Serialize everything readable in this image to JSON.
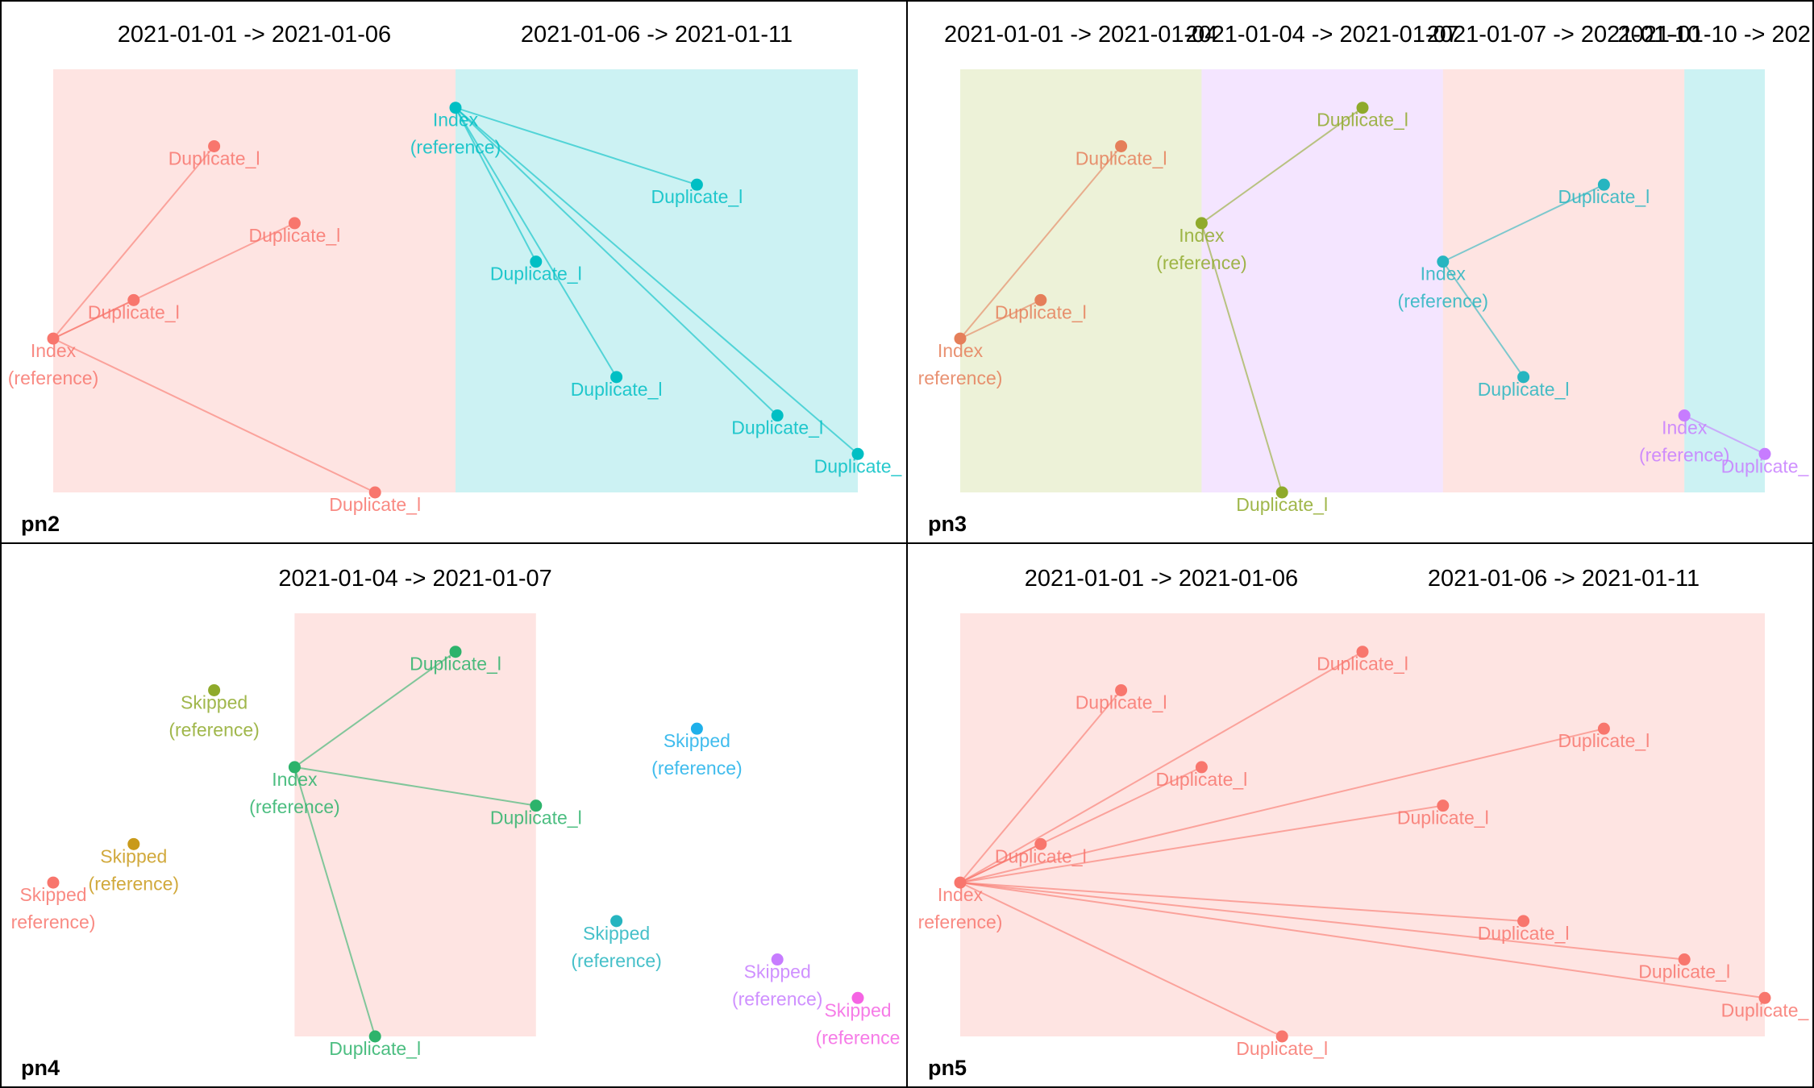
{
  "chart_data": [
    {
      "type": "scatter",
      "panel_label": "pn2",
      "x_range": [
        0,
        10
      ],
      "y_range": [
        0,
        11
      ],
      "periods": [
        {
          "label": "2021-01-01 -> 2021-01-06",
          "x_from": 0,
          "x_to": 5,
          "color": "#F8766D"
        },
        {
          "label": "2021-01-06 -> 2021-01-11",
          "x_from": 5,
          "x_to": 10,
          "color": "#00BFC4"
        }
      ],
      "points": [
        {
          "id": "a0",
          "x": 0,
          "y": 4,
          "label": "Index\n(reference)",
          "color": "#F8766D"
        },
        {
          "id": "a1",
          "x": 2,
          "y": 9,
          "label": "Duplicate_l",
          "color": "#F8766D"
        },
        {
          "id": "a2",
          "x": 3,
          "y": 7,
          "label": "Duplicate_l",
          "color": "#F8766D"
        },
        {
          "id": "a3",
          "x": 1,
          "y": 5,
          "label": "Duplicate_l",
          "color": "#F8766D"
        },
        {
          "id": "a4",
          "x": 4,
          "y": 0,
          "label": "Duplicate_l",
          "color": "#F8766D"
        },
        {
          "id": "b0",
          "x": 5,
          "y": 10,
          "label": "Index\n(reference)",
          "color": "#00BFC4"
        },
        {
          "id": "b1",
          "x": 8,
          "y": 8,
          "label": "Duplicate_l",
          "color": "#00BFC4"
        },
        {
          "id": "b2",
          "x": 6,
          "y": 6,
          "label": "Duplicate_l",
          "color": "#00BFC4"
        },
        {
          "id": "b3",
          "x": 7,
          "y": 3,
          "label": "Duplicate_l",
          "color": "#00BFC4"
        },
        {
          "id": "b4",
          "x": 9,
          "y": 2,
          "label": "Duplicate_l",
          "color": "#00BFC4"
        },
        {
          "id": "b5",
          "x": 10,
          "y": 1,
          "label": "Duplicate_",
          "color": "#00BFC4"
        }
      ],
      "edges": [
        [
          "a0",
          "a1"
        ],
        [
          "a0",
          "a2"
        ],
        [
          "a0",
          "a3"
        ],
        [
          "a0",
          "a4"
        ],
        [
          "b0",
          "b1"
        ],
        [
          "b0",
          "b2"
        ],
        [
          "b0",
          "b3"
        ],
        [
          "b0",
          "b4"
        ],
        [
          "b0",
          "b5"
        ]
      ]
    },
    {
      "type": "scatter",
      "panel_label": "pn3",
      "x_range": [
        0,
        10
      ],
      "y_range": [
        0,
        11
      ],
      "periods": [
        {
          "label": "2021-01-01 -> 2021-01-04",
          "x_from": 0,
          "x_to": 3,
          "color": "#A3C03D"
        },
        {
          "label": "2021-01-04 -> 2021-01-07",
          "x_from": 3,
          "x_to": 6,
          "color": "#C77CFF"
        },
        {
          "label": "2021-01-07 -> 2021-01-10",
          "x_from": 6,
          "x_to": 9,
          "color": "#F8766D"
        },
        {
          "label": "2021-01-10 -> 2021-",
          "x_from": 9,
          "x_to": 10,
          "color": "#00BFC4"
        }
      ],
      "points": [
        {
          "id": "a0",
          "x": 0,
          "y": 4,
          "label": "Index\nreference)",
          "color": "#E57F5A"
        },
        {
          "id": "a1",
          "x": 2,
          "y": 9,
          "label": "Duplicate_l",
          "color": "#E57F5A"
        },
        {
          "id": "a2",
          "x": 1,
          "y": 5,
          "label": "Duplicate_l",
          "color": "#E57F5A"
        },
        {
          "id": "b0",
          "x": 3,
          "y": 7,
          "label": "Index\n(reference)",
          "color": "#8FAA2B"
        },
        {
          "id": "b1",
          "x": 5,
          "y": 10,
          "label": "Duplicate_l",
          "color": "#8FAA2B"
        },
        {
          "id": "b2",
          "x": 4,
          "y": 0,
          "label": "Duplicate_l",
          "color": "#8FAA2B"
        },
        {
          "id": "c0",
          "x": 6,
          "y": 6,
          "label": "Index\n(reference)",
          "color": "#26B5C0"
        },
        {
          "id": "c1",
          "x": 8,
          "y": 8,
          "label": "Duplicate_l",
          "color": "#26B5C0"
        },
        {
          "id": "c2",
          "x": 7,
          "y": 3,
          "label": "Duplicate_l",
          "color": "#26B5C0"
        },
        {
          "id": "d0",
          "x": 9,
          "y": 2,
          "label": "Index\n(reference)",
          "color": "#C77CFF"
        },
        {
          "id": "d1",
          "x": 10,
          "y": 1,
          "label": "Duplicate_",
          "color": "#C77CFF"
        }
      ],
      "edges": [
        [
          "a0",
          "a1"
        ],
        [
          "a0",
          "a2"
        ],
        [
          "b0",
          "b1"
        ],
        [
          "b0",
          "b2"
        ],
        [
          "c0",
          "c1"
        ],
        [
          "c0",
          "c2"
        ],
        [
          "d0",
          "d1"
        ]
      ]
    },
    {
      "type": "scatter",
      "panel_label": "pn4",
      "x_range": [
        0,
        10
      ],
      "y_range": [
        0,
        11
      ],
      "periods": [
        {
          "label": "2021-01-04 -> 2021-01-07",
          "x_from": 3,
          "x_to": 6,
          "color": "#F8766D"
        }
      ],
      "points": [
        {
          "id": "a0",
          "x": 3,
          "y": 7,
          "label": "Index\n(reference)",
          "color": "#2DB36B"
        },
        {
          "id": "a1",
          "x": 5,
          "y": 10,
          "label": "Duplicate_l",
          "color": "#2DB36B"
        },
        {
          "id": "a2",
          "x": 6,
          "y": 6,
          "label": "Duplicate_l",
          "color": "#2DB36B"
        },
        {
          "id": "a3",
          "x": 4,
          "y": 0,
          "label": "Duplicate_l",
          "color": "#2DB36B"
        },
        {
          "id": "s1",
          "x": 2,
          "y": 9,
          "label": "Skipped\n(reference)",
          "color": "#8FAA2B"
        },
        {
          "id": "s2",
          "x": 1,
          "y": 5,
          "label": "Skipped\n(reference)",
          "color": "#C99A1A"
        },
        {
          "id": "s3",
          "x": 0,
          "y": 4,
          "label": "Skipped\nreference)",
          "color": "#F8766D"
        },
        {
          "id": "s4",
          "x": 8,
          "y": 8,
          "label": "Skipped\n(reference)",
          "color": "#1FB0EA"
        },
        {
          "id": "s5",
          "x": 7,
          "y": 3,
          "label": "Skipped\n(reference)",
          "color": "#26B5C0"
        },
        {
          "id": "s6",
          "x": 9,
          "y": 2,
          "label": "Skipped\n(reference)",
          "color": "#C77CFF"
        },
        {
          "id": "s7",
          "x": 10,
          "y": 1,
          "label": "Skipped\n(reference",
          "color": "#F564E3"
        }
      ],
      "edges": [
        [
          "a0",
          "a1"
        ],
        [
          "a0",
          "a2"
        ],
        [
          "a0",
          "a3"
        ]
      ]
    },
    {
      "type": "scatter",
      "panel_label": "pn5",
      "x_range": [
        0,
        10
      ],
      "y_range": [
        0,
        11
      ],
      "periods": [
        {
          "label": "2021-01-01 -> 2021-01-06",
          "x_from": 0,
          "x_to": 5,
          "color": "#F8766D"
        },
        {
          "label": "2021-01-06 -> 2021-01-11",
          "x_from": 5,
          "x_to": 10,
          "color": "#F8766D"
        }
      ],
      "points": [
        {
          "id": "a0",
          "x": 0,
          "y": 4,
          "label": "Index\nreference)",
          "color": "#F8766D"
        },
        {
          "id": "a1",
          "x": 5,
          "y": 10,
          "label": "Duplicate_l",
          "color": "#F8766D"
        },
        {
          "id": "a2",
          "x": 2,
          "y": 9,
          "label": "Duplicate_l",
          "color": "#F8766D"
        },
        {
          "id": "a3",
          "x": 8,
          "y": 8,
          "label": "Duplicate_l",
          "color": "#F8766D"
        },
        {
          "id": "a4",
          "x": 3,
          "y": 7,
          "label": "Duplicate_l",
          "color": "#F8766D"
        },
        {
          "id": "a5",
          "x": 6,
          "y": 6,
          "label": "Duplicate_l",
          "color": "#F8766D"
        },
        {
          "id": "a6",
          "x": 1,
          "y": 5,
          "label": "Duplicate_l",
          "color": "#F8766D"
        },
        {
          "id": "a7",
          "x": 7,
          "y": 3,
          "label": "Duplicate_l",
          "color": "#F8766D"
        },
        {
          "id": "a8",
          "x": 9,
          "y": 2,
          "label": "Duplicate_l",
          "color": "#F8766D"
        },
        {
          "id": "a9",
          "x": 10,
          "y": 1,
          "label": "Duplicate_",
          "color": "#F8766D"
        },
        {
          "id": "a10",
          "x": 4,
          "y": 0,
          "label": "Duplicate_l",
          "color": "#F8766D"
        }
      ],
      "edges": [
        [
          "a0",
          "a1"
        ],
        [
          "a0",
          "a2"
        ],
        [
          "a0",
          "a3"
        ],
        [
          "a0",
          "a4"
        ],
        [
          "a0",
          "a5"
        ],
        [
          "a0",
          "a6"
        ],
        [
          "a0",
          "a7"
        ],
        [
          "a0",
          "a8"
        ],
        [
          "a0",
          "a9"
        ],
        [
          "a0",
          "a10"
        ]
      ]
    }
  ]
}
